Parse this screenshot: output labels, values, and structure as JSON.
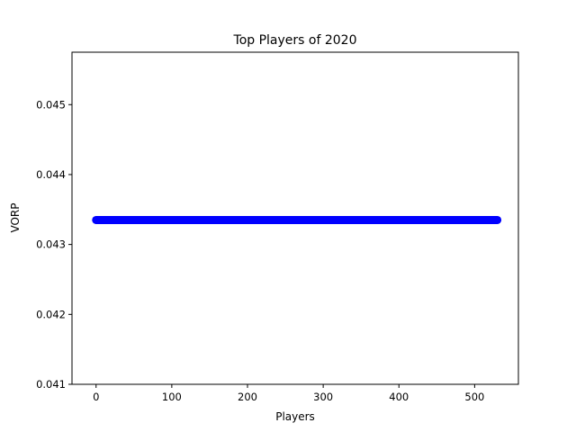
{
  "chart_data": {
    "type": "scatter",
    "title": "Top Players of 2020",
    "xlabel": "Players",
    "ylabel": "VORP",
    "xlim": [
      -31.8,
      557.8
    ],
    "ylim": [
      0.041,
      0.04575
    ],
    "xticks": [
      0,
      100,
      200,
      300,
      400,
      500
    ],
    "yticks": [
      0.041,
      0.042,
      0.043,
      0.044,
      0.045
    ],
    "ytick_labels": [
      "0.041",
      "0.042",
      "0.043",
      "0.044",
      "0.045"
    ],
    "point_color": "#0000ff",
    "grid": false,
    "series": [
      {
        "x_start": 0,
        "x_end": 530,
        "x_step": 1,
        "y": 0.04335
      }
    ]
  }
}
